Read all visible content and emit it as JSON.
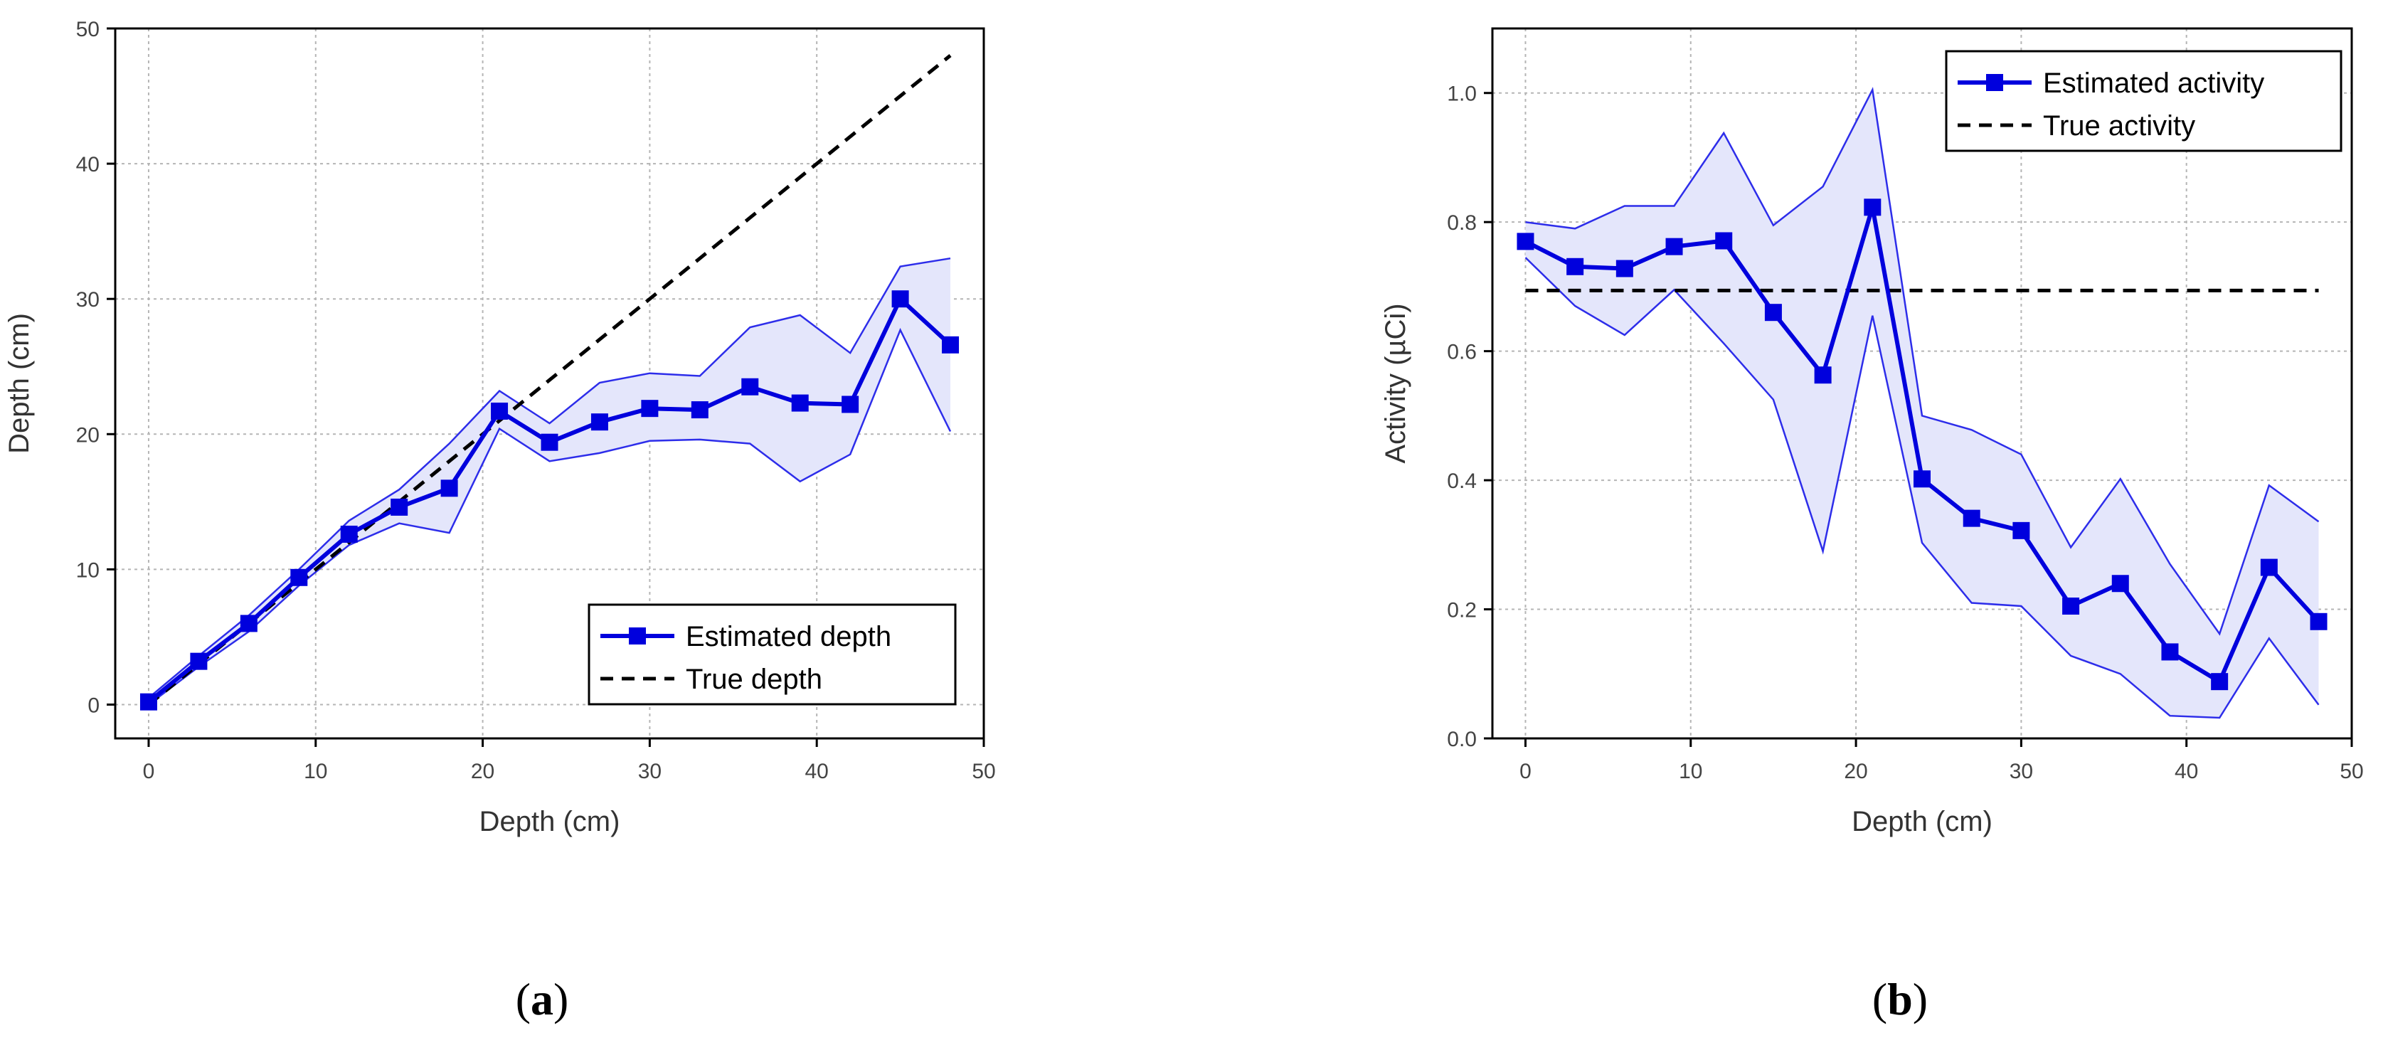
{
  "chart_data": [
    {
      "type": "line",
      "panel_label": {
        "open": "(",
        "letter": "a",
        "close": ")"
      },
      "xlabel": "Depth (cm)",
      "ylabel": "Depth (cm)",
      "xlim": [
        -2,
        50
      ],
      "ylim": [
        -2.5,
        50
      ],
      "xticks": [
        0,
        10,
        20,
        30,
        40,
        50
      ],
      "yticks": [
        0,
        10,
        20,
        30,
        40,
        50
      ],
      "grid": true,
      "legend_position": "lower-right",
      "x": [
        0,
        3,
        6,
        9,
        12,
        15,
        18,
        21,
        24,
        27,
        30,
        33,
        36,
        39,
        42,
        45,
        48
      ],
      "series": [
        {
          "name": "Estimated depth",
          "style": "line-square-markers",
          "color": "#0000dd",
          "values": [
            0.2,
            3.2,
            6.0,
            9.4,
            12.6,
            14.6,
            16.0,
            21.7,
            19.4,
            20.9,
            21.9,
            21.8,
            23.5,
            22.3,
            22.2,
            30.0,
            26.6
          ]
        },
        {
          "name": "True depth",
          "style": "dashed",
          "color": "#000000",
          "values": [
            0,
            3,
            6,
            9,
            12,
            15,
            18,
            21,
            24,
            27,
            30,
            33,
            36,
            39,
            42,
            45,
            48
          ]
        }
      ],
      "band": {
        "upper": [
          0.5,
          3.6,
          6.6,
          10.0,
          13.6,
          15.9,
          19.3,
          23.2,
          20.8,
          23.8,
          24.5,
          24.3,
          27.9,
          28.8,
          26.0,
          32.4,
          33.0
        ],
        "lower": [
          0.0,
          2.8,
          5.4,
          8.8,
          11.8,
          13.4,
          12.7,
          20.4,
          18.0,
          18.6,
          19.5,
          19.6,
          19.3,
          16.5,
          18.5,
          27.7,
          20.2
        ]
      }
    },
    {
      "type": "line",
      "panel_label": {
        "open": "(",
        "letter": "b",
        "close": ")"
      },
      "xlabel": "Depth (cm)",
      "ylabel": "Activity (µCi)",
      "xlim": [
        -2,
        50
      ],
      "ylim": [
        0,
        1.1
      ],
      "xticks": [
        0,
        10,
        20,
        30,
        40,
        50
      ],
      "yticks": [
        0.0,
        0.2,
        0.4,
        0.6,
        0.8,
        1.0
      ],
      "ytick_labels": [
        "0.0",
        "0.2",
        "0.4",
        "0.6",
        "0.8",
        "1.0"
      ],
      "grid": true,
      "legend_position": "top-right",
      "x": [
        0,
        3,
        6,
        9,
        12,
        15,
        18,
        21,
        24,
        27,
        30,
        33,
        36,
        39,
        42,
        45,
        48
      ],
      "series": [
        {
          "name": "Estimated activity",
          "style": "line-square-markers",
          "color": "#0000dd",
          "values": [
            0.77,
            0.731,
            0.728,
            0.762,
            0.771,
            0.66,
            0.563,
            0.823,
            0.402,
            0.341,
            0.322,
            0.205,
            0.24,
            0.134,
            0.088,
            0.265,
            0.181
          ]
        },
        {
          "name": "True activity",
          "style": "dashed",
          "color": "#000000",
          "values": [
            0.694,
            0.694,
            0.694,
            0.694,
            0.694,
            0.694,
            0.694,
            0.694,
            0.694,
            0.694,
            0.694,
            0.694,
            0.694,
            0.694,
            0.694,
            0.694,
            0.694
          ]
        }
      ],
      "band": {
        "upper": [
          0.8,
          0.79,
          0.825,
          0.825,
          0.938,
          0.795,
          0.855,
          1.005,
          0.5,
          0.478,
          0.44,
          0.296,
          0.402,
          0.27,
          0.162,
          0.392,
          0.336
        ],
        "lower": [
          0.745,
          0.67,
          0.625,
          0.695,
          0.612,
          0.525,
          0.29,
          0.655,
          0.303,
          0.21,
          0.205,
          0.128,
          0.1,
          0.035,
          0.032,
          0.155,
          0.052
        ]
      }
    }
  ]
}
